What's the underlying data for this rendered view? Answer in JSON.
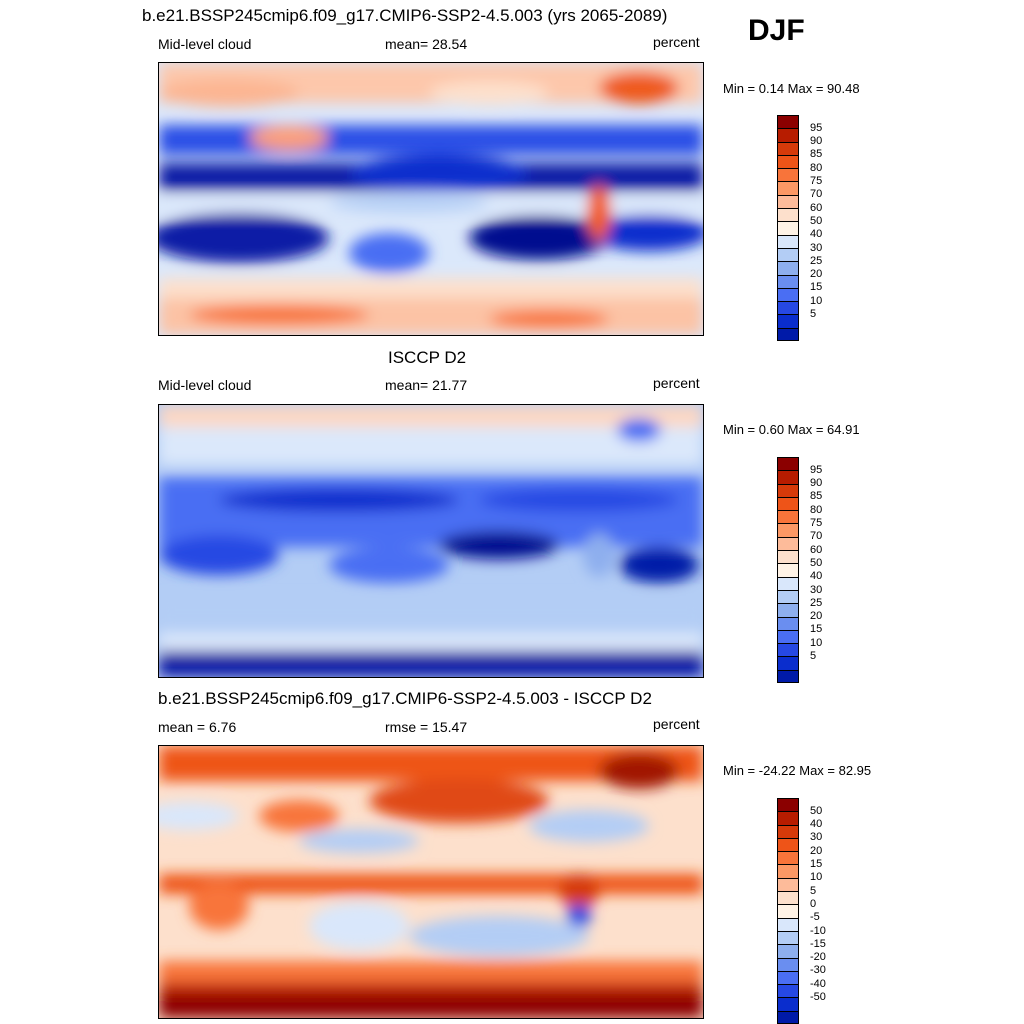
{
  "season_label": "DJF",
  "panels": [
    {
      "id": "model",
      "title": "b.e21.BSSP245cmip6.f09_g17.CMIP6-SSP2-4.5.003 (yrs 2065-2089)",
      "left_label": "Mid-level cloud",
      "center_label": "mean=  28.54",
      "right_label": "percent",
      "minmax": "Min =   0.14 Max =  90.48",
      "colorbar_labels": [
        "95",
        "90",
        "85",
        "80",
        "75",
        "70",
        "60",
        "50",
        "40",
        "30",
        "25",
        "20",
        "15",
        "10",
        "5"
      ],
      "colors": [
        "#8b0000",
        "#b71c00",
        "#d63a0a",
        "#ee5418",
        "#f8743a",
        "#fc9865",
        "#fdbb9a",
        "#fde0cc",
        "#fff3e6",
        "#d9e7fb",
        "#b3cdf5",
        "#8eafee",
        "#6a8ef0",
        "#4a6ef3",
        "#2648e3",
        "#0a2dcd",
        "#001aa8"
      ]
    },
    {
      "id": "obs",
      "title": "ISCCP D2",
      "left_label": "Mid-level cloud",
      "center_label": "mean=  21.77",
      "right_label": "percent",
      "minmax": "Min =   0.60 Max =  64.91",
      "colorbar_labels": [
        "95",
        "90",
        "85",
        "80",
        "75",
        "70",
        "60",
        "50",
        "40",
        "30",
        "25",
        "20",
        "15",
        "10",
        "5"
      ],
      "colors": [
        "#8b0000",
        "#b71c00",
        "#d63a0a",
        "#ee5418",
        "#f8743a",
        "#fc9865",
        "#fdbb9a",
        "#fde0cc",
        "#fff3e6",
        "#d9e7fb",
        "#b3cdf5",
        "#8eafee",
        "#6a8ef0",
        "#4a6ef3",
        "#2648e3",
        "#0a2dcd",
        "#001aa8"
      ]
    },
    {
      "id": "diff",
      "title": "b.e21.BSSP245cmip6.f09_g17.CMIP6-SSP2-4.5.003 - ISCCP D2",
      "left_label": "mean =   6.76",
      "center_label": "rmse =  15.47",
      "right_label": "percent",
      "minmax": "Min = -24.22 Max =  82.95",
      "colorbar_labels": [
        "50",
        "40",
        "30",
        "20",
        "15",
        "10",
        "5",
        "0",
        "-5",
        "-10",
        "-15",
        "-20",
        "-30",
        "-40",
        "-50"
      ],
      "colors": [
        "#8b0000",
        "#b71c00",
        "#d63a0a",
        "#ee5418",
        "#f8743a",
        "#fc9865",
        "#fdbb9a",
        "#fde0cc",
        "#fff3e6",
        "#d9e7fb",
        "#b3cdf5",
        "#8eafee",
        "#6a8ef0",
        "#4a6ef3",
        "#2648e3",
        "#0a2dcd",
        "#001aa8"
      ]
    }
  ]
}
